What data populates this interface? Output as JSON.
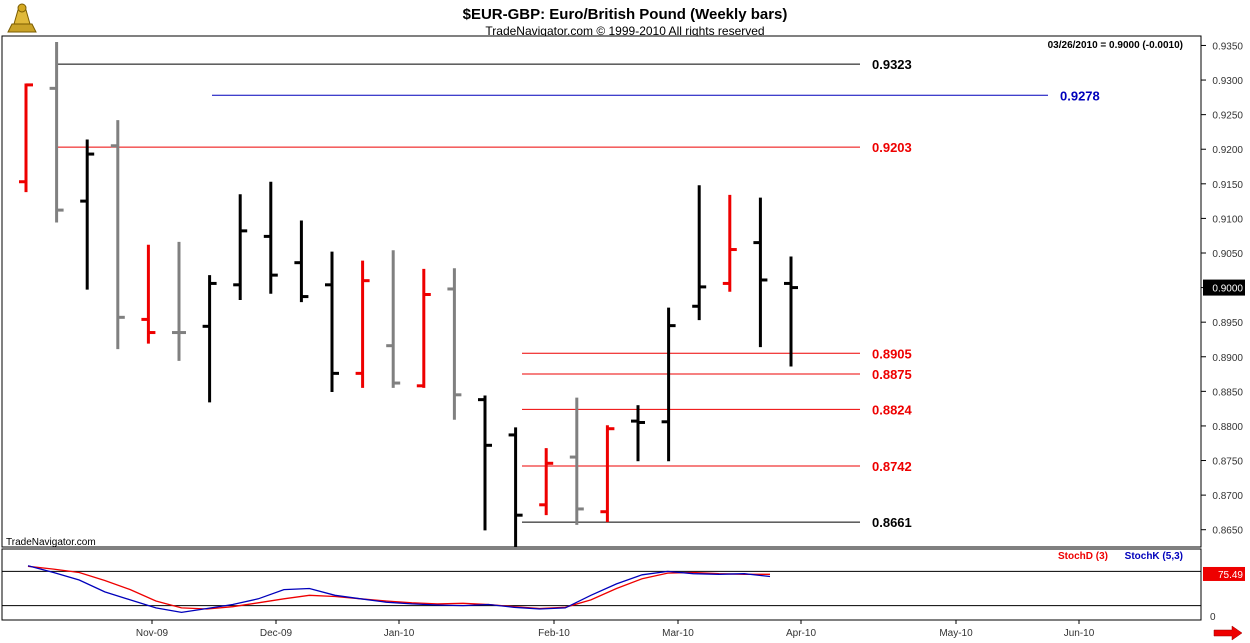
{
  "header": {
    "title": "$EUR-GBP:  Euro/British Pound  (Weekly bars)",
    "copyright": "TradeNavigator.com © 1999-2010 All rights reserved",
    "last_value": "03/26/2010 = 0.9000 (-0.0010)",
    "watermark": "TradeNavigator.com"
  },
  "chart_data": [
    {
      "type": "ohlc",
      "ylim": [
        0.8625,
        0.9355
      ],
      "y_ticks": [
        "0.9350",
        "0.9300",
        "0.9250",
        "0.9200",
        "0.9150",
        "0.9100",
        "0.9050",
        "0.9000",
        "0.8950",
        "0.8900",
        "0.8850",
        "0.8800",
        "0.8750",
        "0.8700",
        "0.8650"
      ],
      "current_price": "0.9000",
      "x_labels": [
        "Nov-09",
        "Dec-09",
        "Jan-10",
        "Feb-10",
        "Mar-10",
        "Apr-10",
        "May-10",
        "Jun-10"
      ],
      "bars": [
        {
          "o": 0.9153,
          "h": 0.9295,
          "l": 0.9138,
          "c": 0.9293,
          "color": "#ee0000"
        },
        {
          "o": 0.9288,
          "h": 0.9355,
          "l": 0.9094,
          "c": 0.9112,
          "color": "#808080"
        },
        {
          "o": 0.9125,
          "h": 0.9214,
          "l": 0.8997,
          "c": 0.9193,
          "color": "#000000"
        },
        {
          "o": 0.9205,
          "h": 0.9242,
          "l": 0.8911,
          "c": 0.8957,
          "color": "#808080"
        },
        {
          "o": 0.8954,
          "h": 0.9062,
          "l": 0.8919,
          "c": 0.8935,
          "color": "#ee0000"
        },
        {
          "o": 0.8935,
          "h": 0.9066,
          "l": 0.8894,
          "c": 0.8935,
          "color": "#808080"
        },
        {
          "o": 0.8944,
          "h": 0.9018,
          "l": 0.8834,
          "c": 0.9006,
          "color": "#000000"
        },
        {
          "o": 0.9004,
          "h": 0.9135,
          "l": 0.8982,
          "c": 0.9082,
          "color": "#000000"
        },
        {
          "o": 0.9074,
          "h": 0.9153,
          "l": 0.8991,
          "c": 0.9018,
          "color": "#000000"
        },
        {
          "o": 0.9036,
          "h": 0.9097,
          "l": 0.8979,
          "c": 0.8987,
          "color": "#000000"
        },
        {
          "o": 0.9004,
          "h": 0.9052,
          "l": 0.8849,
          "c": 0.8876,
          "color": "#000000"
        },
        {
          "o": 0.8876,
          "h": 0.9039,
          "l": 0.8855,
          "c": 0.901,
          "color": "#ee0000"
        },
        {
          "o": 0.8916,
          "h": 0.9054,
          "l": 0.8855,
          "c": 0.8862,
          "color": "#808080"
        },
        {
          "o": 0.8858,
          "h": 0.9027,
          "l": 0.8855,
          "c": 0.899,
          "color": "#ee0000"
        },
        {
          "o": 0.8998,
          "h": 0.9028,
          "l": 0.8809,
          "c": 0.8845,
          "color": "#808080"
        },
        {
          "o": 0.8838,
          "h": 0.8844,
          "l": 0.8649,
          "c": 0.8772,
          "color": "#000000"
        },
        {
          "o": 0.8787,
          "h": 0.8798,
          "l": 0.8625,
          "c": 0.8671,
          "color": "#000000"
        },
        {
          "o": 0.8686,
          "h": 0.8768,
          "l": 0.8671,
          "c": 0.8746,
          "color": "#ee0000"
        },
        {
          "o": 0.8755,
          "h": 0.8841,
          "l": 0.8657,
          "c": 0.868,
          "color": "#808080"
        },
        {
          "o": 0.8676,
          "h": 0.8801,
          "l": 0.8661,
          "c": 0.8796,
          "color": "#ee0000"
        },
        {
          "o": 0.8807,
          "h": 0.883,
          "l": 0.8749,
          "c": 0.8805,
          "color": "#000000"
        },
        {
          "o": 0.8806,
          "h": 0.8971,
          "l": 0.8749,
          "c": 0.8945,
          "color": "#000000"
        },
        {
          "o": 0.8973,
          "h": 0.9148,
          "l": 0.8953,
          "c": 0.9001,
          "color": "#000000"
        },
        {
          "o": 0.9006,
          "h": 0.9134,
          "l": 0.8994,
          "c": 0.9055,
          "color": "#ee0000"
        },
        {
          "o": 0.9065,
          "h": 0.913,
          "l": 0.8914,
          "c": 0.9011,
          "color": "#000000"
        },
        {
          "o": 0.9006,
          "h": 0.9045,
          "l": 0.8886,
          "c": 0.9,
          "color": "#000000"
        }
      ],
      "levels": [
        {
          "label": "0.9323",
          "value": 0.9323,
          "color": "#000000"
        },
        {
          "label": "0.9278",
          "value": 0.9278,
          "color": "#0000bb"
        },
        {
          "label": "0.9203",
          "value": 0.9203,
          "color": "#ee0000"
        },
        {
          "label": "0.8905",
          "value": 0.8905,
          "color": "#ee0000"
        },
        {
          "label": "0.8875",
          "value": 0.8875,
          "color": "#ee0000"
        },
        {
          "label": "0.8824",
          "value": 0.8824,
          "color": "#ee0000"
        },
        {
          "label": "0.8742",
          "value": 0.8742,
          "color": "#ee0000"
        },
        {
          "label": "0.8661",
          "value": 0.8661,
          "color": "#000000"
        }
      ]
    },
    {
      "type": "line",
      "ylim": [
        0,
        100
      ],
      "y_ticks": [
        "0"
      ],
      "current_value": "75.49",
      "reference_lines": [
        80,
        20
      ],
      "series": [
        {
          "name": "StochD (3)",
          "color": "#ee0000",
          "values": [
            89,
            84,
            78,
            64,
            48,
            28,
            16,
            14,
            18,
            25,
            32,
            38,
            36,
            32,
            28,
            25,
            23,
            24,
            22,
            18,
            15,
            17,
            30,
            50,
            67,
            77,
            78,
            76,
            75,
            75
          ]
        },
        {
          "name": "StochK (5,3)",
          "color": "#0000bb",
          "values": [
            90,
            78,
            65,
            44,
            30,
            16,
            8,
            15,
            22,
            32,
            48,
            50,
            38,
            32,
            26,
            23,
            21,
            20,
            22,
            17,
            14,
            16,
            38,
            58,
            74,
            80,
            76,
            75,
            76,
            71
          ]
        }
      ]
    }
  ]
}
